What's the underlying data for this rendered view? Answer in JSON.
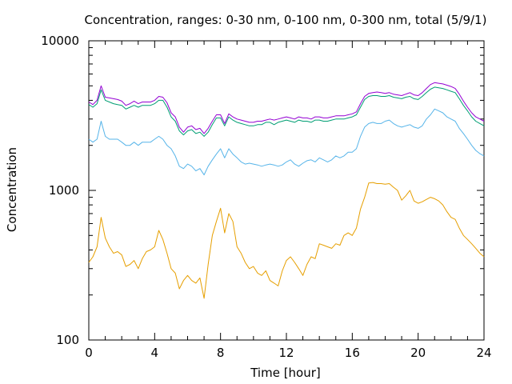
{
  "chart_data": {
    "type": "line",
    "title": "Concentration, ranges: 0-30 nm, 0-100 nm, 0-300 nm, total (5/9/1)",
    "xlabel": "Time [hour]",
    "ylabel": "Concentration",
    "xlim": [
      0,
      24
    ],
    "ylim": [
      100,
      10000
    ],
    "y_scale": "log",
    "grid": false,
    "x_ticks": [
      0,
      4,
      8,
      12,
      16,
      20,
      24
    ],
    "y_ticks": [
      100,
      1000,
      10000
    ],
    "x_tick_labels": [
      "0",
      "4",
      "8",
      "12",
      "16",
      "20",
      "24"
    ],
    "y_tick_labels": [
      "100",
      "1000",
      "10000"
    ],
    "series_colors": [
      "#e69f00",
      "#56b4e9",
      "#009e73",
      "#9400d3"
    ],
    "x": [
      0.0,
      0.25,
      0.5,
      0.75,
      1.0,
      1.25,
      1.5,
      1.75,
      2.0,
      2.25,
      2.5,
      2.75,
      3.0,
      3.25,
      3.5,
      3.75,
      4.0,
      4.25,
      4.5,
      4.75,
      5.0,
      5.25,
      5.5,
      5.75,
      6.0,
      6.25,
      6.5,
      6.75,
      7.0,
      7.25,
      7.5,
      7.75,
      8.0,
      8.25,
      8.5,
      8.75,
      9.0,
      9.25,
      9.5,
      9.75,
      10.0,
      10.25,
      10.5,
      10.75,
      11.0,
      11.25,
      11.5,
      11.75,
      12.0,
      12.25,
      12.5,
      12.75,
      13.0,
      13.25,
      13.5,
      13.75,
      14.0,
      14.25,
      14.5,
      14.75,
      15.0,
      15.25,
      15.5,
      15.75,
      16.0,
      16.25,
      16.5,
      16.75,
      17.0,
      17.25,
      17.5,
      17.75,
      18.0,
      18.25,
      18.5,
      18.75,
      19.0,
      19.25,
      19.5,
      19.75,
      20.0,
      20.25,
      20.5,
      20.75,
      21.0,
      21.25,
      21.5,
      21.75,
      22.0,
      22.25,
      22.5,
      22.75,
      23.0,
      23.25,
      23.5,
      23.75,
      24.0
    ],
    "series": [
      {
        "values": [
          330,
          360,
          420,
          660,
          480,
          420,
          380,
          390,
          370,
          310,
          320,
          340,
          300,
          350,
          390,
          400,
          420,
          540,
          470,
          380,
          300,
          280,
          220,
          250,
          270,
          250,
          240,
          260,
          190,
          320,
          500,
          620,
          760,
          520,
          700,
          620,
          420,
          380,
          330,
          300,
          310,
          280,
          270,
          290,
          250,
          240,
          230,
          290,
          340,
          360,
          330,
          300,
          270,
          320,
          360,
          350,
          440,
          430,
          420,
          410,
          440,
          430,
          500,
          520,
          500,
          560,
          750,
          900,
          1120,
          1130,
          1110,
          1110,
          1100,
          1110,
          1050,
          1000,
          860,
          920,
          1000,
          850,
          820,
          840,
          870,
          900,
          880,
          850,
          800,
          720,
          660,
          640,
          560,
          500,
          470,
          440,
          410,
          380,
          360
        ]
      },
      {
        "values": [
          2200,
          2100,
          2200,
          2900,
          2300,
          2200,
          2200,
          2200,
          2100,
          2000,
          2000,
          2100,
          2000,
          2100,
          2100,
          2100,
          2200,
          2300,
          2200,
          2000,
          1900,
          1700,
          1450,
          1400,
          1500,
          1450,
          1350,
          1400,
          1270,
          1450,
          1600,
          1750,
          1900,
          1650,
          1900,
          1750,
          1650,
          1550,
          1500,
          1520,
          1500,
          1480,
          1450,
          1480,
          1500,
          1480,
          1450,
          1480,
          1550,
          1600,
          1500,
          1450,
          1520,
          1580,
          1600,
          1550,
          1650,
          1600,
          1550,
          1600,
          1700,
          1650,
          1700,
          1800,
          1800,
          1900,
          2300,
          2650,
          2800,
          2850,
          2800,
          2800,
          2900,
          2950,
          2800,
          2700,
          2650,
          2700,
          2750,
          2650,
          2600,
          2700,
          3000,
          3200,
          3500,
          3400,
          3300,
          3100,
          3000,
          2900,
          2600,
          2400,
          2200,
          2000,
          1850,
          1760,
          1700
        ]
      },
      {
        "values": [
          3750,
          3600,
          3800,
          4700,
          4000,
          3900,
          3800,
          3750,
          3700,
          3500,
          3600,
          3700,
          3600,
          3700,
          3700,
          3700,
          3800,
          4000,
          4000,
          3600,
          3100,
          2900,
          2500,
          2350,
          2500,
          2550,
          2400,
          2450,
          2300,
          2450,
          2750,
          3050,
          3050,
          2700,
          3100,
          2950,
          2850,
          2800,
          2750,
          2700,
          2700,
          2750,
          2750,
          2850,
          2850,
          2750,
          2850,
          2900,
          2950,
          2900,
          2850,
          2950,
          2900,
          2900,
          2850,
          2950,
          2950,
          2900,
          2900,
          2950,
          3000,
          3000,
          3000,
          3050,
          3100,
          3200,
          3600,
          4050,
          4250,
          4300,
          4300,
          4250,
          4250,
          4300,
          4200,
          4150,
          4100,
          4200,
          4250,
          4100,
          4050,
          4250,
          4500,
          4750,
          4900,
          4850,
          4800,
          4700,
          4600,
          4500,
          4100,
          3700,
          3400,
          3100,
          2900,
          2800,
          2700
        ]
      },
      {
        "values": [
          3900,
          3750,
          4000,
          5000,
          4200,
          4150,
          4100,
          4050,
          3950,
          3700,
          3800,
          3950,
          3800,
          3900,
          3900,
          3900,
          4000,
          4250,
          4200,
          3850,
          3300,
          3100,
          2650,
          2450,
          2650,
          2700,
          2550,
          2600,
          2400,
          2600,
          2900,
          3200,
          3200,
          2800,
          3250,
          3100,
          3000,
          2950,
          2900,
          2850,
          2850,
          2900,
          2900,
          2950,
          3000,
          2950,
          3000,
          3050,
          3100,
          3050,
          3000,
          3100,
          3050,
          3050,
          3000,
          3100,
          3100,
          3050,
          3050,
          3100,
          3150,
          3150,
          3150,
          3200,
          3250,
          3350,
          3800,
          4250,
          4450,
          4500,
          4550,
          4500,
          4450,
          4500,
          4400,
          4350,
          4300,
          4400,
          4500,
          4350,
          4300,
          4500,
          4800,
          5100,
          5250,
          5200,
          5150,
          5050,
          4950,
          4800,
          4400,
          3950,
          3600,
          3300,
          3100,
          3000,
          2900
        ]
      }
    ]
  }
}
